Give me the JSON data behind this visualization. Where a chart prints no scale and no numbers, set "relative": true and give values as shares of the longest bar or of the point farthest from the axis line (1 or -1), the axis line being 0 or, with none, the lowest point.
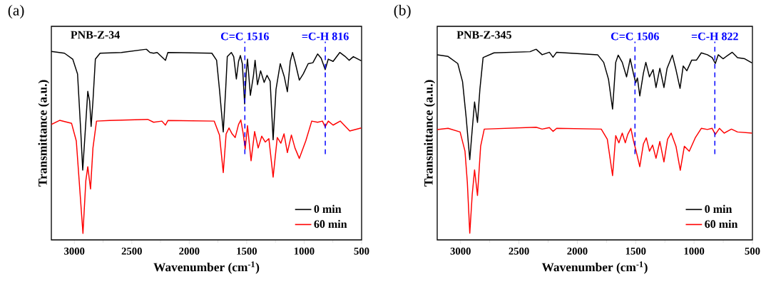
{
  "chart_data": [
    {
      "type": "line",
      "title": "(a)",
      "annotations": [
        "PNB-Z-34"
      ],
      "xlabel": "Wavenumber (cm$^{-1}$)",
      "ylabel": "Transmittance (a.u.)",
      "relative": true,
      "legend": "bottom right",
      "xlim": [
        3200,
        500
      ],
      "xticks": [
        3000,
        2500,
        2000,
        1500,
        1000,
        500
      ],
      "ref_lines": [
        {
          "axis": "x",
          "value": 1516,
          "label": "C=C 1516",
          "color": "#0000ff",
          "line_style": "dashed"
        },
        {
          "axis": "x",
          "value": 816,
          "label": "=C-H 816",
          "color": "#0000ff",
          "line_style": "dashed"
        }
      ],
      "series": [
        {
          "name": "0 min",
          "color": "#000000",
          "x": [
            3200,
            3086,
            3014,
            2972,
            2945,
            2927,
            2904,
            2883,
            2867,
            2854,
            2838,
            2817,
            2776,
            2590,
            2373,
            2342,
            2310,
            2279,
            2207,
            2186,
            1803,
            1762,
            1737,
            1704,
            1683,
            1669,
            1634,
            1613,
            1590,
            1571,
            1555,
            1538,
            1518,
            1503,
            1493,
            1468,
            1441,
            1427,
            1406,
            1379,
            1348,
            1323,
            1296,
            1270,
            1245,
            1208,
            1173,
            1146,
            1121,
            1101,
            1080,
            1042,
            1007,
            965,
            924,
            883,
            852,
            817,
            790,
            748,
            690,
            645,
            608,
            572,
            503
          ],
          "values": [
            0.988,
            0.979,
            0.948,
            0.87,
            0.58,
            0.366,
            0.58,
            0.779,
            0.728,
            0.595,
            0.728,
            0.948,
            0.979,
            0.983,
            1.0,
            0.983,
            0.979,
            0.983,
            0.942,
            0.983,
            0.979,
            0.942,
            0.789,
            0.566,
            0.789,
            0.961,
            0.983,
            0.961,
            0.844,
            0.936,
            0.967,
            0.924,
            0.713,
            0.887,
            0.948,
            0.758,
            0.863,
            0.942,
            0.814,
            0.887,
            0.826,
            0.863,
            0.832,
            0.525,
            0.789,
            0.924,
            0.856,
            0.777,
            0.936,
            0.983,
            0.936,
            0.838,
            0.871,
            0.924,
            0.929,
            0.975,
            0.953,
            0.893,
            0.948,
            0.936,
            0.983,
            0.963,
            0.942,
            0.961,
            0.939
          ]
        },
        {
          "name": "60 min",
          "color": "#ff0000",
          "x": [
            3200,
            3128,
            3024,
            2983,
            2952,
            2925,
            2900,
            2883,
            2859,
            2838,
            2807,
            2693,
            2362,
            2310,
            2238,
            2207,
            2186,
            1783,
            1737,
            1704,
            1679,
            1654,
            1627,
            1600,
            1571,
            1551,
            1530,
            1513,
            1493,
            1462,
            1431,
            1400,
            1369,
            1338,
            1307,
            1270,
            1234,
            1203,
            1175,
            1146,
            1111,
            1080,
            1042,
            986,
            934,
            883,
            841,
            817,
            790,
            748,
            686,
            603,
            503
          ],
          "values": [
            0.605,
            0.627,
            0.611,
            0.519,
            0.261,
            0.034,
            0.31,
            0.384,
            0.267,
            0.482,
            0.623,
            0.626,
            0.632,
            0.617,
            0.623,
            0.602,
            0.626,
            0.623,
            0.55,
            0.353,
            0.556,
            0.587,
            0.556,
            0.537,
            0.605,
            0.629,
            0.556,
            0.476,
            0.599,
            0.415,
            0.568,
            0.482,
            0.544,
            0.513,
            0.531,
            0.329,
            0.537,
            0.507,
            0.556,
            0.458,
            0.55,
            0.482,
            0.427,
            0.519,
            0.623,
            0.617,
            0.623,
            0.593,
            0.623,
            0.602,
            0.623,
            0.571,
            0.587
          ]
        }
      ]
    },
    {
      "type": "line",
      "title": "(b)",
      "annotations": [
        "PNB-Z-345"
      ],
      "xlabel": "Wavenumber (cm$^{-1}$)",
      "ylabel": "Transmittance (a.u.)",
      "relative": true,
      "legend": "bottom right",
      "xlim": [
        3200,
        500
      ],
      "xticks": [
        3000,
        2500,
        2000,
        1500,
        1000,
        500
      ],
      "ref_lines": [
        {
          "axis": "x",
          "value": 1506,
          "label": "C=C 1506",
          "color": "#0000ff",
          "line_style": "dashed"
        },
        {
          "axis": "x",
          "value": 822,
          "label": "=C-H 822",
          "color": "#0000ff",
          "line_style": "dashed"
        }
      ],
      "series": [
        {
          "name": "0 min",
          "color": "#000000",
          "x": [
            3200,
            3107,
            3024,
            2983,
            2952,
            2921,
            2900,
            2880,
            2855,
            2834,
            2807,
            2714,
            2405,
            2353,
            2301,
            2239,
            2208,
            2177,
            1826,
            1774,
            1733,
            1698,
            1671,
            1650,
            1615,
            1578,
            1547,
            1520,
            1500,
            1485,
            1465,
            1434,
            1413,
            1382,
            1351,
            1326,
            1293,
            1258,
            1231,
            1186,
            1155,
            1120,
            1093,
            1062,
            1020,
            979,
            938,
            886,
            845,
            818,
            793,
            752,
            673,
            628,
            566,
            504
          ],
          "values": [
            0.971,
            0.962,
            0.925,
            0.83,
            0.642,
            0.421,
            0.579,
            0.723,
            0.616,
            0.792,
            0.956,
            0.981,
            0.987,
            1.0,
            0.971,
            0.984,
            0.958,
            0.984,
            0.971,
            0.931,
            0.843,
            0.686,
            0.931,
            0.969,
            0.931,
            0.855,
            0.95,
            0.874,
            0.824,
            0.849,
            0.755,
            0.874,
            0.931,
            0.855,
            0.893,
            0.799,
            0.9,
            0.799,
            0.9,
            0.969,
            0.893,
            0.795,
            0.912,
            0.887,
            0.943,
            0.943,
            0.981,
            0.971,
            0.956,
            0.925,
            0.971,
            0.95,
            0.984,
            0.956,
            0.95,
            0.928
          ]
        },
        {
          "name": "60 min",
          "color": "#ff0000",
          "x": [
            3200,
            3107,
            3004,
            2962,
            2942,
            2921,
            2900,
            2880,
            2855,
            2828,
            2797,
            2353,
            2301,
            2239,
            2208,
            2177,
            1795,
            1743,
            1698,
            1671,
            1644,
            1615,
            1589,
            1568,
            1541,
            1520,
            1496,
            1465,
            1434,
            1409,
            1382,
            1355,
            1326,
            1293,
            1258,
            1227,
            1196,
            1155,
            1118,
            1083,
            1041,
            990,
            938,
            886,
            845,
            818,
            783,
            742,
            680,
            628,
            504
          ],
          "values": [
            0.579,
            0.585,
            0.566,
            0.465,
            0.302,
            0.035,
            0.239,
            0.367,
            0.233,
            0.491,
            0.581,
            0.591,
            0.581,
            0.589,
            0.569,
            0.585,
            0.581,
            0.528,
            0.337,
            0.547,
            0.509,
            0.56,
            0.509,
            0.553,
            0.585,
            0.522,
            0.465,
            0.384,
            0.503,
            0.535,
            0.465,
            0.497,
            0.428,
            0.516,
            0.409,
            0.528,
            0.56,
            0.491,
            0.365,
            0.491,
            0.465,
            0.535,
            0.585,
            0.579,
            0.585,
            0.553,
            0.585,
            0.56,
            0.581,
            0.566,
            0.56
          ]
        }
      ]
    }
  ]
}
